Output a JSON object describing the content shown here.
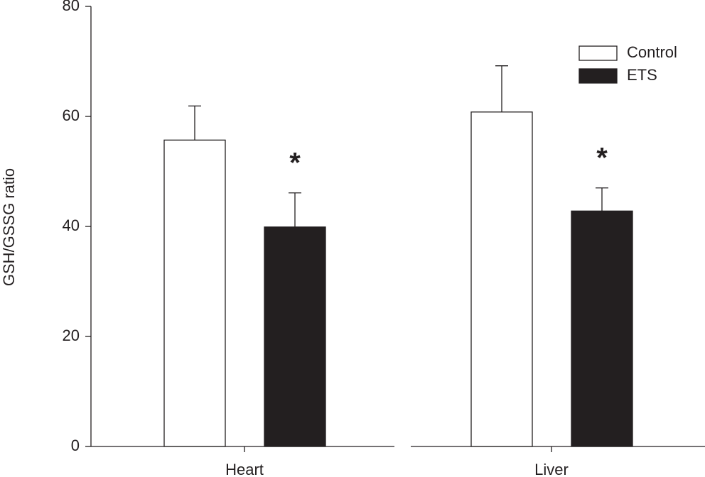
{
  "chart_data": {
    "type": "bar",
    "y_label": "GSH/GSSG ratio",
    "categories": [
      "Heart",
      "Liver"
    ],
    "series": [
      {
        "name": "Control",
        "color": "#ffffff",
        "values": [
          55.7,
          60.8
        ],
        "errors": [
          6.2,
          8.4
        ]
      },
      {
        "name": "ETS",
        "color": "#231f20",
        "values": [
          39.9,
          42.8
        ],
        "errors": [
          6.2,
          4.2
        ]
      }
    ],
    "annotations": [
      "*",
      "*"
    ],
    "ylim": [
      0,
      80
    ],
    "yticks": [
      0,
      20,
      40,
      60,
      80
    ],
    "legend": "upper-right"
  }
}
